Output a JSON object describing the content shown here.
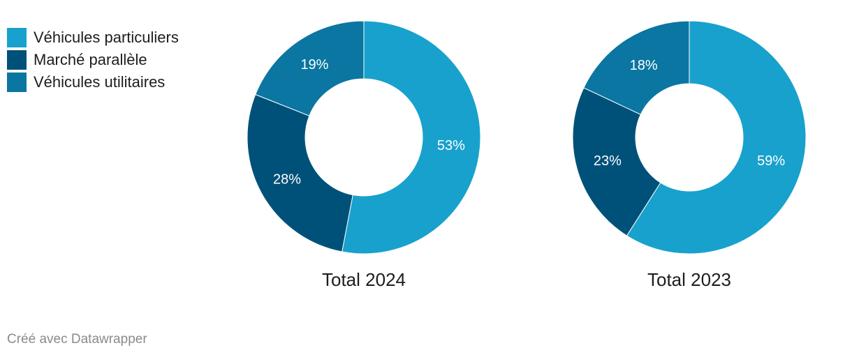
{
  "legend": [
    {
      "label": "Véhicules particuliers",
      "color": "#18a1cd"
    },
    {
      "label": "Marché parallèle",
      "color": "#005179"
    },
    {
      "label": "Véhicules utilitaires",
      "color": "#0a76a1"
    }
  ],
  "credit": "Créé avec Datawrapper",
  "chart_data": [
    {
      "type": "pie",
      "variant": "donut",
      "title": "Total 2024",
      "categories": [
        "Véhicules particuliers",
        "Marché parallèle",
        "Véhicules utilitaires"
      ],
      "values": [
        53,
        28,
        19
      ],
      "labels": [
        "53%",
        "28%",
        "19%"
      ],
      "colors": [
        "#18a1cd",
        "#005179",
        "#0a76a1"
      ],
      "legend": "top-left"
    },
    {
      "type": "pie",
      "variant": "donut",
      "title": "Total 2023",
      "categories": [
        "Véhicules particuliers",
        "Marché parallèle",
        "Véhicules utilitaires"
      ],
      "values": [
        59,
        23,
        18
      ],
      "labels": [
        "59%",
        "23%",
        "18%"
      ],
      "colors": [
        "#18a1cd",
        "#005179",
        "#0a76a1"
      ],
      "legend": "top-left"
    }
  ]
}
